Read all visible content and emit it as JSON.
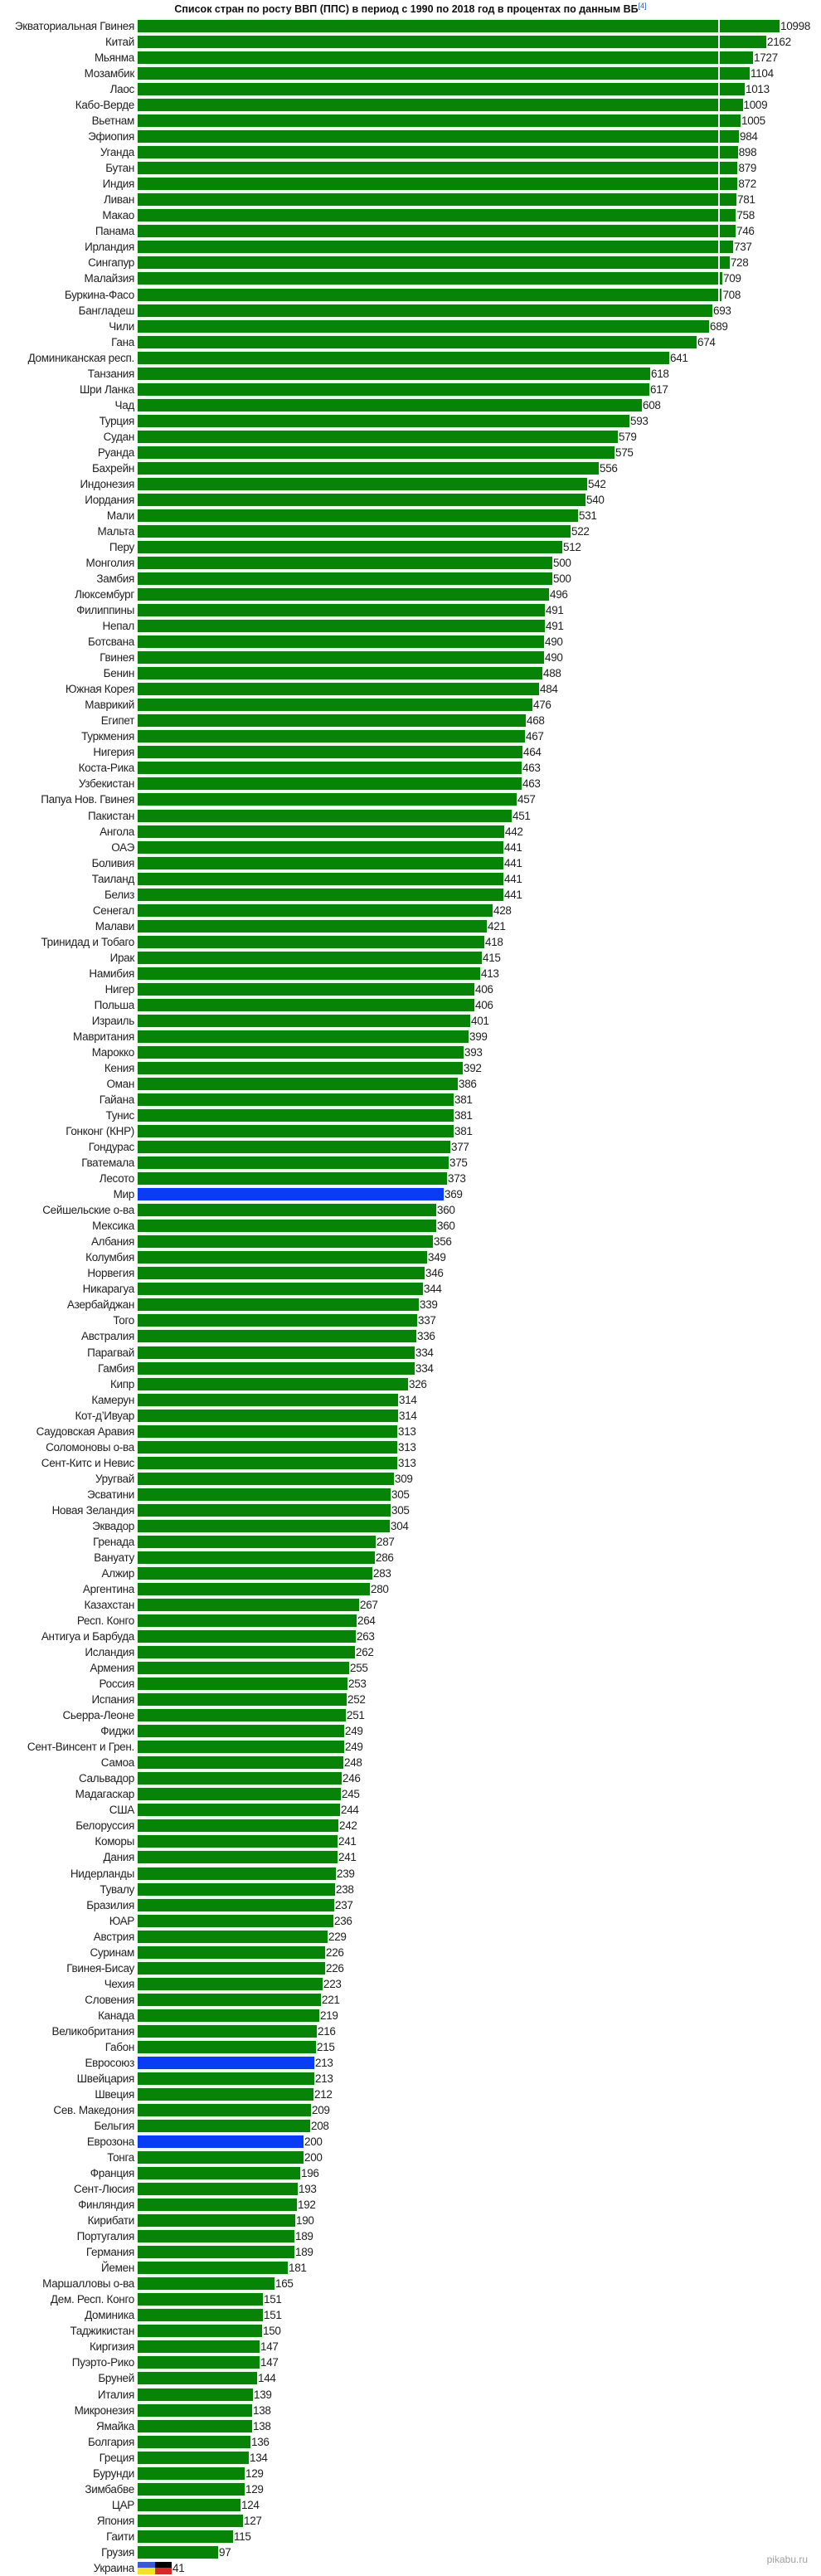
{
  "chart_data": {
    "type": "bar",
    "orientation": "horizontal",
    "title": "Список стран по росту ВВП (ППС) в период с 1990 по 2018 год в процентах по данным ВБ",
    "title_ref": "[4]",
    "xlabel": "",
    "ylabel": "",
    "axis_break": 700,
    "grid": false,
    "bar_color": "#078407",
    "highlight_color": "#0b3cf5",
    "highlighted": [
      "Мир",
      "Евросоюз",
      "Еврозона"
    ],
    "flag_bar": {
      "category": "Украина",
      "colors": [
        "#3a5bd0",
        "#f2e22a",
        "#000000",
        "#d42a2a"
      ]
    },
    "categories": [
      "Экваториальная Гвинея",
      "Китай",
      "Мьянма",
      "Мозамбик",
      "Лаос",
      "Кабо-Верде",
      "Вьетнам",
      "Эфиопия",
      "Уганда",
      "Бутан",
      "Индия",
      "Ливан",
      "Макао",
      "Панама",
      "Ирландия",
      "Сингапур",
      "Малайзия",
      "Буркина-Фасо",
      "Бангладеш",
      "Чили",
      "Гана",
      "Доминиканская респ.",
      "Танзания",
      "Шри Ланка",
      "Чад",
      "Турция",
      "Судан",
      "Руанда",
      "Бахрейн",
      "Индонезия",
      "Иордания",
      "Мали",
      "Мальта",
      "Перу",
      "Монголия",
      "Замбия",
      "Люксембург",
      "Филиппины",
      "Непал",
      "Ботсвана",
      "Гвинея",
      "Бенин",
      "Южная Корея",
      "Маврикий",
      "Египет",
      "Туркмения",
      "Нигерия",
      "Коста-Рика",
      "Узбекистан",
      "Папуа Нов. Гвинея",
      "Пакистан",
      "Ангола",
      "ОАЭ",
      "Боливия",
      "Таиланд",
      "Белиз",
      "Сенегал",
      "Малави",
      "Тринидад и Тобаго",
      "Ирак",
      "Намибия",
      "Нигер",
      "Польша",
      "Израиль",
      "Мавритания",
      "Марокко",
      "Кения",
      "Оман",
      "Гайана",
      "Тунис",
      "Гонконг (КНР)",
      "Гондурас",
      "Гватемала",
      "Лесото",
      "Мир",
      "Сейшельские о-ва",
      "Мексика",
      "Албания",
      "Колумбия",
      "Норвегия",
      "Никарагуа",
      "Азербайджан",
      "Того",
      "Австралия",
      "Парагвай",
      "Гамбия",
      "Кипр",
      "Камерун",
      "Кот-д’Ивуар",
      "Саудовская Аравия",
      "Соломоновы о-ва",
      "Сент-Китс и Невис",
      "Уругвай",
      "Эсватини",
      "Новая Зеландия",
      "Эквадор",
      "Гренада",
      "Вануату",
      "Алжир",
      "Аргентина",
      "Казахстан",
      "Респ. Конго",
      "Антигуа и Барбуда",
      "Исландия",
      "Армения",
      "Россия",
      "Испания",
      "Сьерра-Леоне",
      "Фиджи",
      "Сент-Винсент и Грен.",
      "Самоа",
      "Сальвадор",
      "Мадагаскар",
      "США",
      "Белоруссия",
      "Коморы",
      "Дания",
      "Нидерланды",
      "Тувалу",
      "Бразилия",
      "ЮАР",
      "Австрия",
      "Суринам",
      "Гвинея-Бисау",
      "Чехия",
      "Словения",
      "Канада",
      "Великобритания",
      "Габон",
      "Евросоюз",
      "Швейцария",
      "Швеция",
      "Сев. Македония",
      "Бельгия",
      "Еврозона",
      "Тонга",
      "Франция",
      "Сент-Люсия",
      "Финляндия",
      "Кирибати",
      "Португалия",
      "Германия",
      "Йемен",
      "Маршалловы о-ва",
      "Дем. Респ. Конго",
      "Доминика",
      "Таджикистан",
      "Киргизия",
      "Пуэрто-Рико",
      "Бруней",
      "Италия",
      "Микронезия",
      "Ямайка",
      "Болгария",
      "Греция",
      "Бурунди",
      "Зимбабве",
      "ЦАР",
      "Япония",
      "Гаити",
      "Грузия",
      "Украина"
    ],
    "values": [
      10998,
      2162,
      1727,
      1104,
      1013,
      1009,
      1005,
      984,
      898,
      879,
      872,
      781,
      758,
      746,
      737,
      728,
      709,
      708,
      693,
      689,
      674,
      641,
      618,
      617,
      608,
      593,
      579,
      575,
      556,
      542,
      540,
      531,
      522,
      512,
      500,
      500,
      496,
      491,
      491,
      490,
      490,
      488,
      484,
      476,
      468,
      467,
      464,
      463,
      463,
      457,
      451,
      442,
      441,
      441,
      441,
      441,
      428,
      421,
      418,
      415,
      413,
      406,
      406,
      401,
      399,
      393,
      392,
      386,
      381,
      381,
      381,
      377,
      375,
      373,
      369,
      360,
      360,
      356,
      349,
      346,
      344,
      339,
      337,
      336,
      334,
      334,
      326,
      314,
      314,
      313,
      313,
      313,
      309,
      305,
      305,
      304,
      287,
      286,
      283,
      280,
      267,
      264,
      263,
      262,
      255,
      253,
      252,
      251,
      249,
      249,
      248,
      246,
      245,
      244,
      242,
      241,
      241,
      239,
      238,
      237,
      236,
      229,
      226,
      226,
      223,
      221,
      219,
      216,
      215,
      213,
      213,
      212,
      209,
      208,
      200,
      200,
      196,
      193,
      192,
      190,
      189,
      189,
      181,
      165,
      151,
      151,
      150,
      147,
      147,
      144,
      139,
      138,
      138,
      136,
      134,
      129,
      129,
      124,
      127,
      115,
      97,
      41
    ]
  },
  "watermark": "pikabu.ru"
}
